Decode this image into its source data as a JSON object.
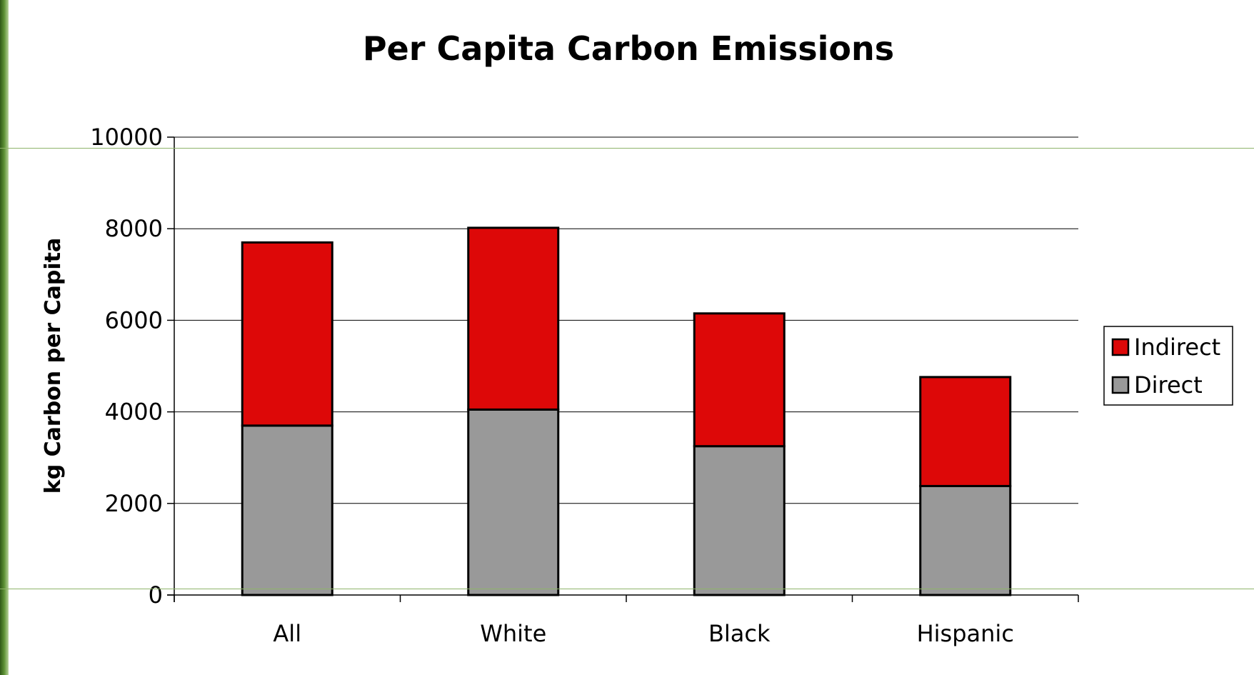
{
  "chart_data": {
    "type": "bar",
    "stacked": true,
    "title": "Per Capita Carbon Emissions",
    "xlabel": "",
    "ylabel": "kg Carbon per Capita",
    "categories": [
      "All",
      "White",
      "Black",
      "Hispanic"
    ],
    "series": [
      {
        "name": "Direct",
        "values": [
          3700,
          4050,
          3250,
          2380
        ],
        "color": "#999999"
      },
      {
        "name": "Indirect",
        "values": [
          4000,
          3970,
          2900,
          2380
        ],
        "color": "#dd0808"
      }
    ],
    "ylim": [
      0,
      10000
    ],
    "yticks": [
      "0",
      "2000",
      "4000",
      "6000",
      "8000",
      "10000"
    ],
    "grid": true,
    "legend_position": "right",
    "legend_order": [
      "Indirect",
      "Direct"
    ]
  }
}
